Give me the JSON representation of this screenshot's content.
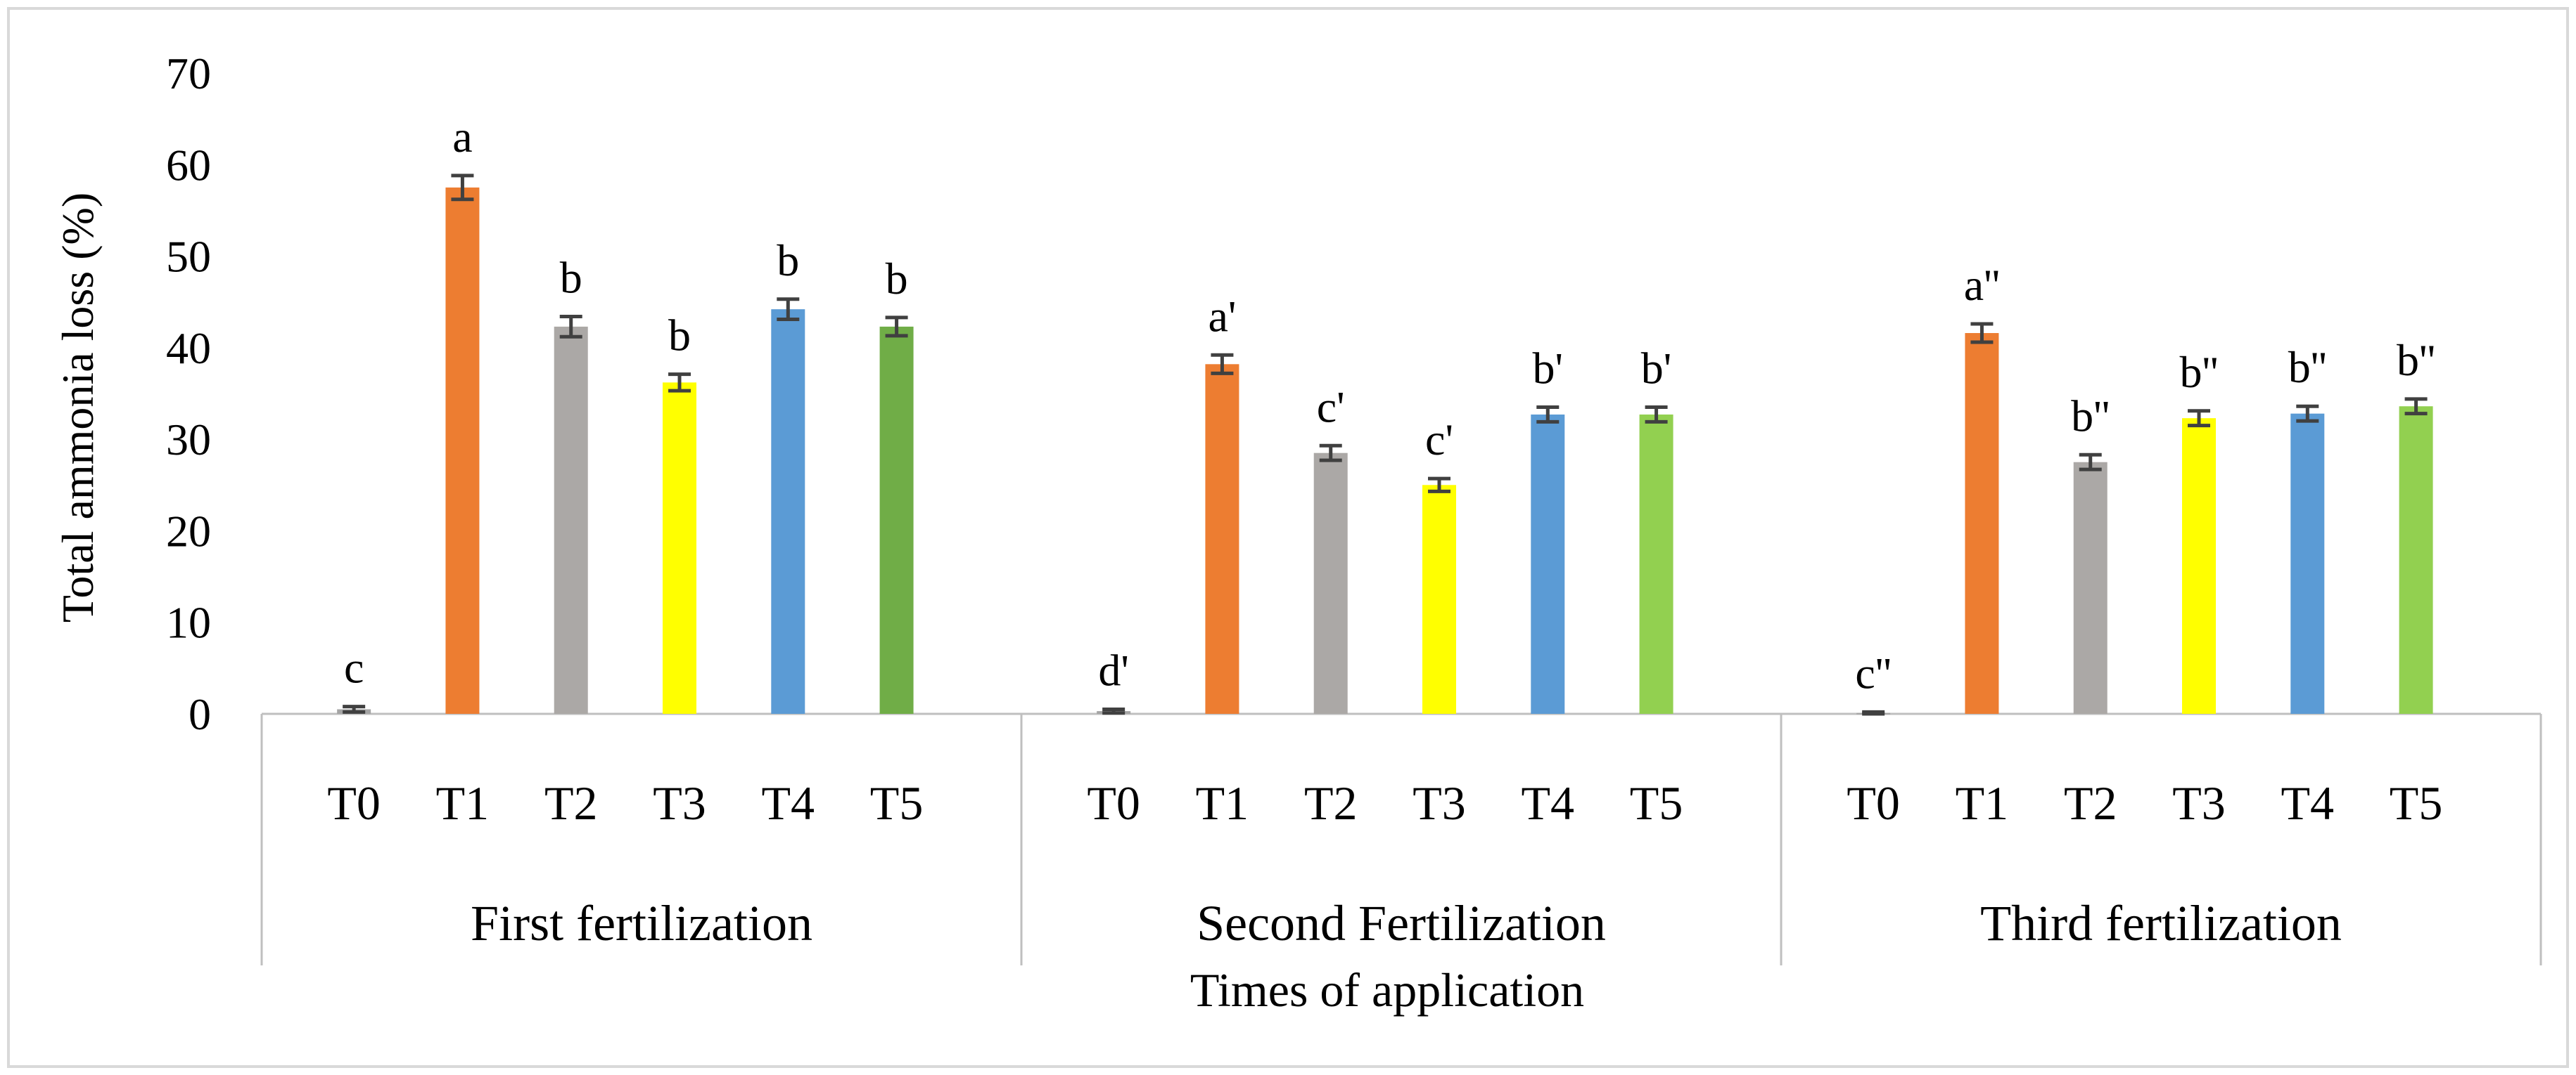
{
  "chart_data": {
    "type": "bar",
    "title": "",
    "xlabel": "Times of application",
    "ylabel": "Total ammonia loss (%)",
    "ylim": [
      0,
      70
    ],
    "y_ticks": [
      "0",
      "10",
      "20",
      "30",
      "40",
      "50",
      "60",
      "70"
    ],
    "grid": false,
    "colors": {
      "T0": "#a5a5a5",
      "T1": "#ed7d31",
      "T2": "#aba8a6",
      "T3": "#ffff00",
      "T4": "#5b9bd5",
      "T5": "#70ad47",
      "error_bar": "#404040",
      "axis": "#bfbfbf",
      "border": "#d9d9d9"
    },
    "groups": [
      {
        "label": "First fertilization",
        "categories": [
          "T0",
          "T1",
          "T2",
          "T3",
          "T4",
          "T5"
        ],
        "values": [
          0.5,
          57.5,
          42.3,
          36.2,
          44.2,
          42.3
        ],
        "errors": [
          0.3,
          1.3,
          1.1,
          0.9,
          1.1,
          1.0
        ],
        "letters": [
          "c",
          "a",
          "b",
          "b",
          "b",
          "b"
        ],
        "bar_colors": [
          "#a5a5a5",
          "#ed7d31",
          "#aba8a6",
          "#ffff00",
          "#5b9bd5",
          "#70ad47"
        ]
      },
      {
        "label": "Second Fertilization",
        "categories": [
          "T0",
          "T1",
          "T2",
          "T3",
          "T4",
          "T5"
        ],
        "values": [
          0.3,
          38.2,
          28.5,
          25.0,
          32.7,
          32.7
        ],
        "errors": [
          0.2,
          1.0,
          0.8,
          0.7,
          0.8,
          0.8
        ],
        "letters": [
          "d'",
          "a'",
          "c'",
          "c'",
          "b'",
          "b'"
        ],
        "bar_colors": [
          "#a5a5a5",
          "#ed7d31",
          "#aba8a6",
          "#ffff00",
          "#5b9bd5",
          "#92d050"
        ]
      },
      {
        "label": "Third fertilization",
        "categories": [
          "T0",
          "T1",
          "T2",
          "T3",
          "T4",
          "T5"
        ],
        "values": [
          0.1,
          41.6,
          27.5,
          32.3,
          32.8,
          33.6
        ],
        "errors": [
          0.1,
          1.0,
          0.8,
          0.8,
          0.8,
          0.8
        ],
        "letters": [
          "c''",
          "a''",
          "b''",
          "b''",
          "b''",
          "b''"
        ],
        "bar_colors": [
          "#a5a5a5",
          "#ed7d31",
          "#aba8a6",
          "#ffff00",
          "#5b9bd5",
          "#92d050"
        ]
      }
    ]
  }
}
